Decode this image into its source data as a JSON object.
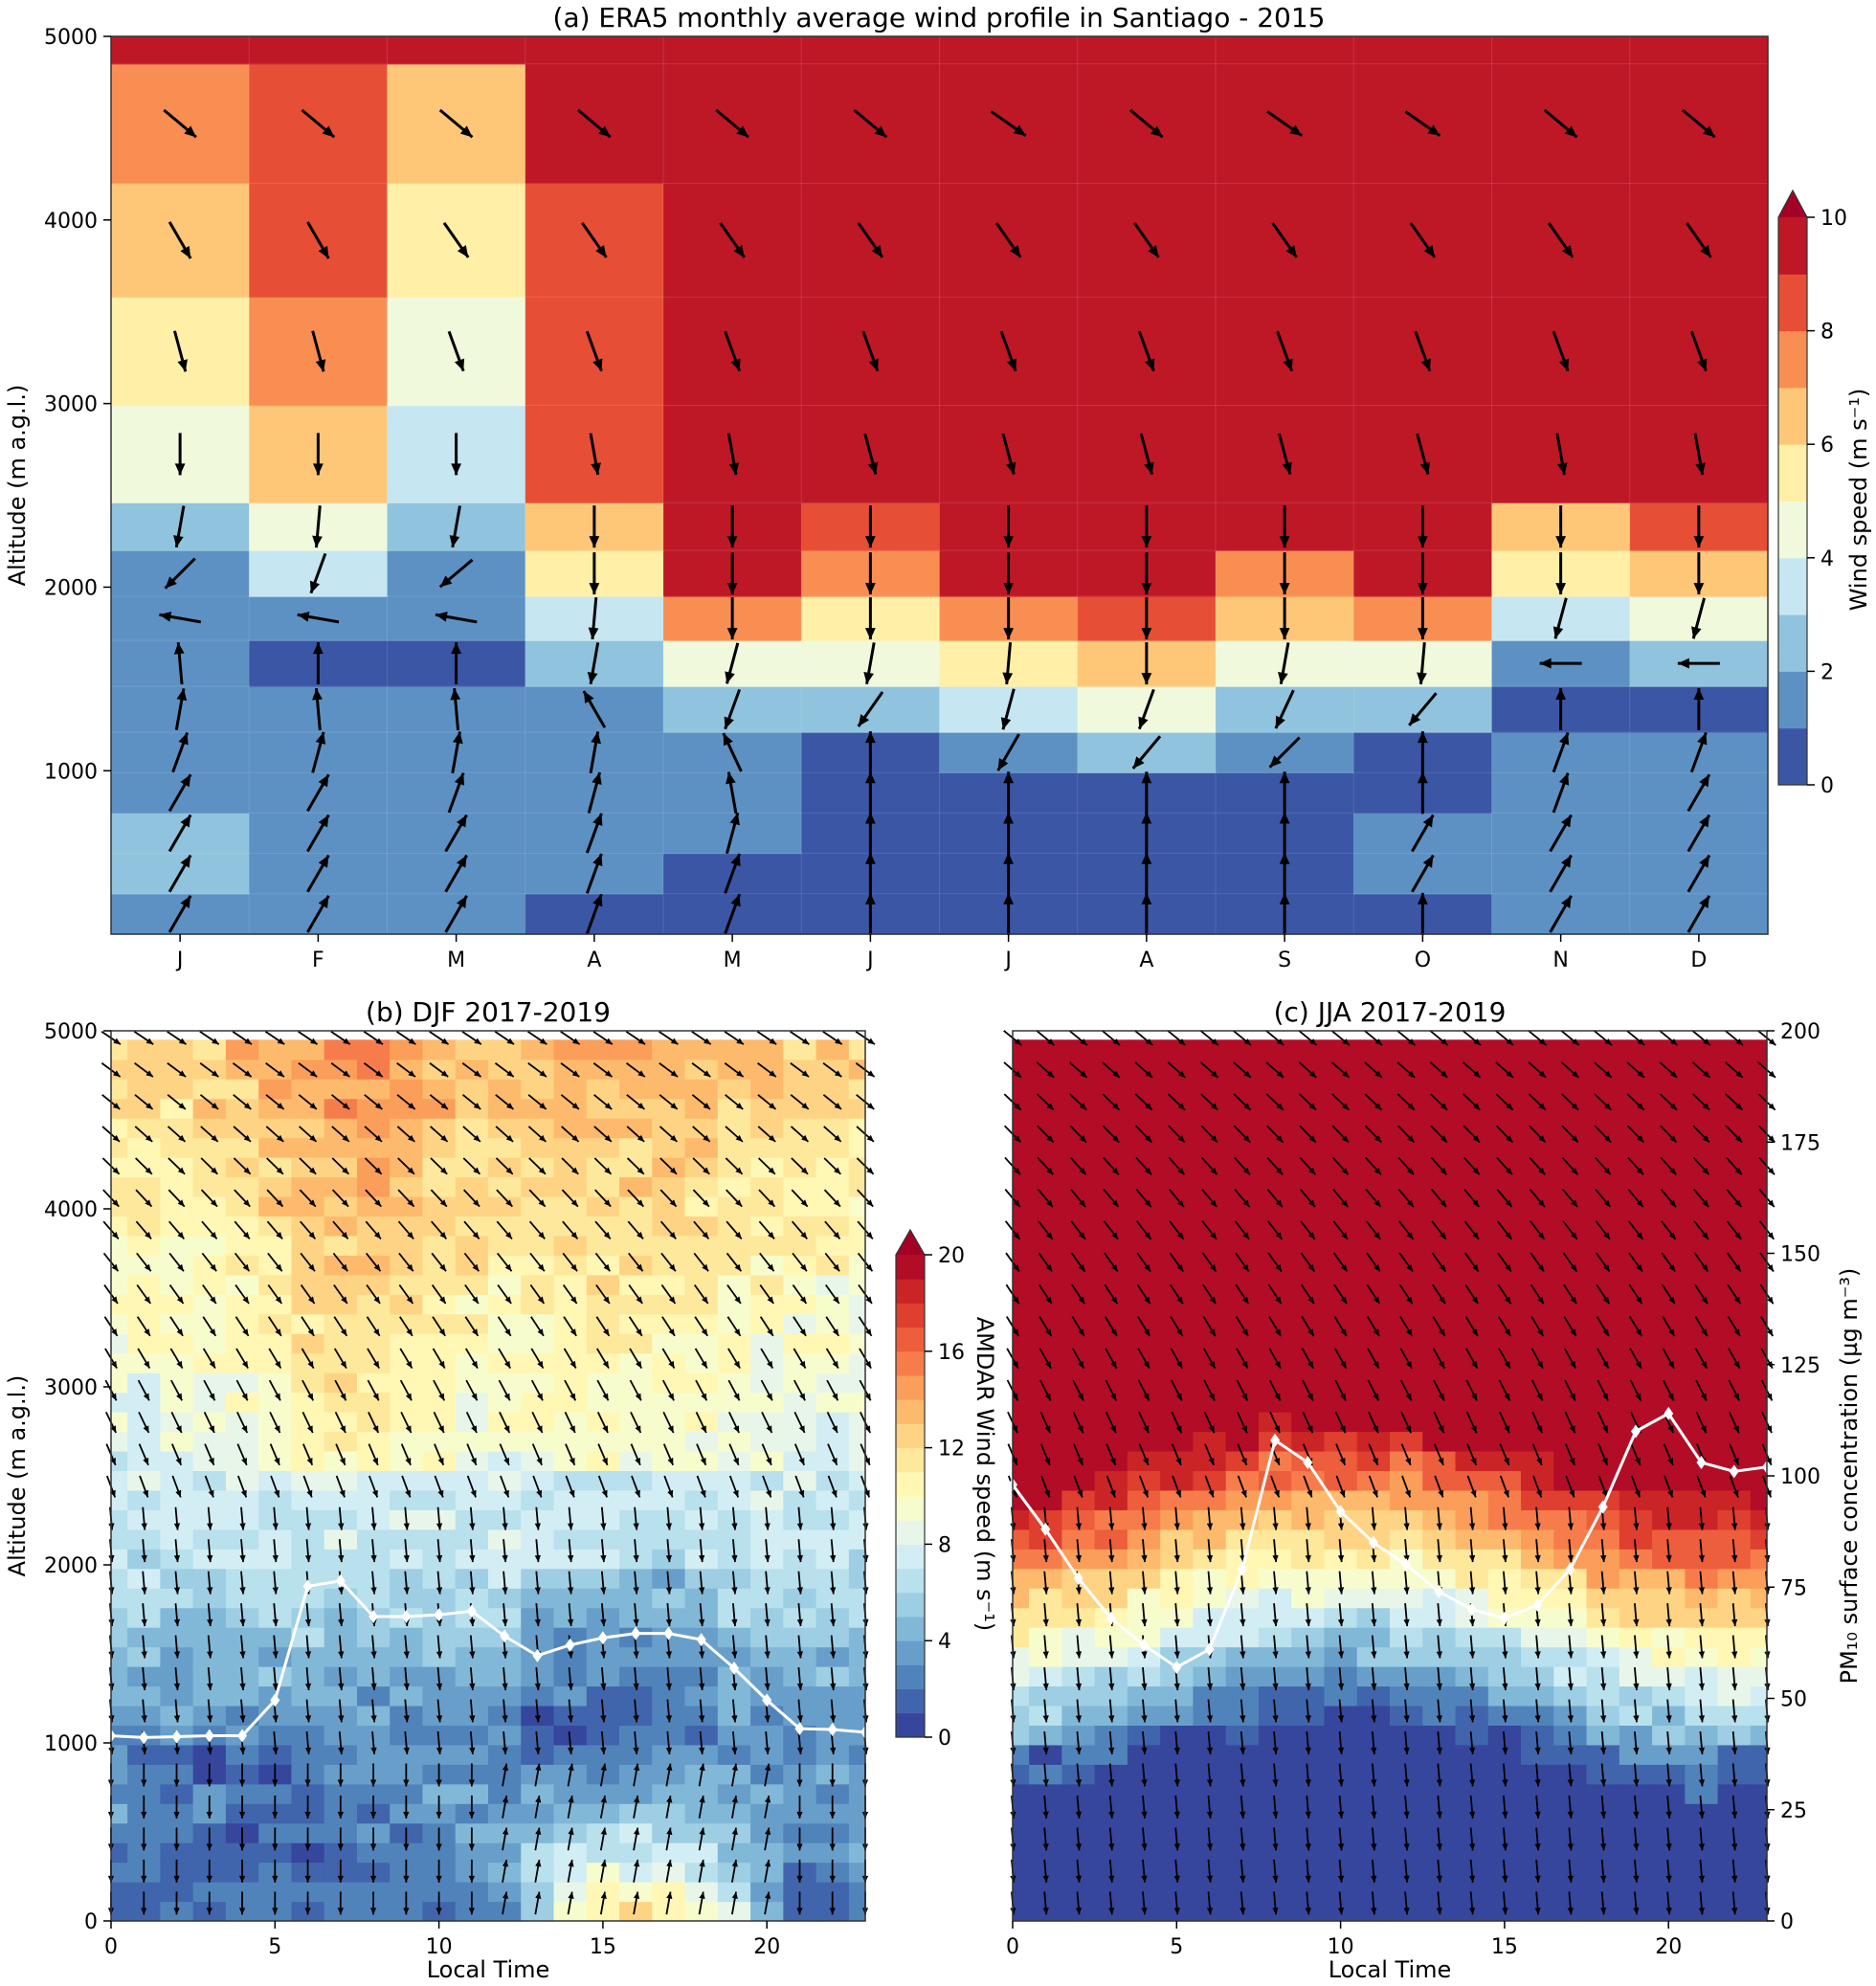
{
  "chart_data": [
    {
      "type": "heatmap",
      "title": "(a) ERA5 monthly average wind profile in Santiago - 2015",
      "xlabel": "",
      "ylabel": "Altitude (m a.g.l.)",
      "categories": [
        "J",
        "F",
        "M",
        "A",
        "M",
        "J",
        "J",
        "A",
        "S",
        "O",
        "N",
        "D"
      ],
      "altitude_levels_m": [
        110,
        330,
        550,
        770,
        990,
        1210,
        1460,
        1710,
        1950,
        2200,
        2460,
        2990,
        3580,
        4200,
        4850,
        5000
      ],
      "ylim": [
        110,
        5000
      ],
      "yticks": [
        1000,
        2000,
        3000,
        4000,
        5000
      ],
      "colorbar": {
        "label": "Wind speed (m s⁻¹)",
        "min": 0,
        "max": 10,
        "step": 1,
        "ticks": [
          0,
          2,
          4,
          6,
          8,
          10
        ],
        "extend": "max",
        "colors": [
          "#313695",
          "#4575b4",
          "#74add1",
          "#abd9e9",
          "#e0f3f8",
          "#fee090",
          "#fdae61",
          "#f46d43",
          "#d73027",
          "#a50026"
        ]
      },
      "wind_speed": [
        [
          1.5,
          1.5,
          1.5,
          0.5,
          0.5,
          0.5,
          0.5,
          0.5,
          0.5,
          0.5,
          1.5,
          1.5
        ],
        [
          2.5,
          1.5,
          1.5,
          1.5,
          0.5,
          0.5,
          0.5,
          0.5,
          0.5,
          1.5,
          1.5,
          1.5
        ],
        [
          2.5,
          1.5,
          1.5,
          1.5,
          1.5,
          0.5,
          0.5,
          0.5,
          0.5,
          1.5,
          1.5,
          1.5
        ],
        [
          1.5,
          1.5,
          1.5,
          1.5,
          1.5,
          0.5,
          0.5,
          0.5,
          0.5,
          0.5,
          1.5,
          1.5
        ],
        [
          1.5,
          1.5,
          1.5,
          1.5,
          1.5,
          0.5,
          1.5,
          2.5,
          1.5,
          0.5,
          1.5,
          1.5
        ],
        [
          1.5,
          1.5,
          1.5,
          1.5,
          2.5,
          2.5,
          3.5,
          4.5,
          2.5,
          2.5,
          0.5,
          0.5
        ],
        [
          1.5,
          0.5,
          0.5,
          2.5,
          4.5,
          4.5,
          5.5,
          6.5,
          4.5,
          4.5,
          1.5,
          2.5
        ],
        [
          1.5,
          1.5,
          1.5,
          3.5,
          7.5,
          5.5,
          7.5,
          8.5,
          6.5,
          7.5,
          3.5,
          4.5
        ],
        [
          1.5,
          3.5,
          1.5,
          5.5,
          9.5,
          7.5,
          9.5,
          9.5,
          7.5,
          9.5,
          5.5,
          6.5
        ],
        [
          2.5,
          4.5,
          2.5,
          6.5,
          9.5,
          8.5,
          9.5,
          9.5,
          9.5,
          9.5,
          6.5,
          8.5
        ],
        [
          4.5,
          6.5,
          3.5,
          8.5,
          9.5,
          9.5,
          9.5,
          9.5,
          9.5,
          9.5,
          9.5,
          9.5
        ],
        [
          5.5,
          7.5,
          4.5,
          8.5,
          9.5,
          9.5,
          9.5,
          9.5,
          9.5,
          9.5,
          9.5,
          9.5
        ],
        [
          6.5,
          8.5,
          5.5,
          8.5,
          9.5,
          9.5,
          9.5,
          9.5,
          9.5,
          9.5,
          9.5,
          9.5
        ],
        [
          7.5,
          8.5,
          6.5,
          9.5,
          9.5,
          9.5,
          9.5,
          9.5,
          9.5,
          9.5,
          9.5,
          9.5
        ],
        [
          9.5,
          9.5,
          9.5,
          9.5,
          9.5,
          9.5,
          9.5,
          9.5,
          9.5,
          9.5,
          9.5,
          9.5
        ]
      ],
      "wind_direction_to_deg": [
        [
          30,
          30,
          30,
          20,
          20,
          0,
          0,
          0,
          0,
          0,
          30,
          30
        ],
        [
          30,
          30,
          30,
          20,
          20,
          0,
          0,
          0,
          0,
          30,
          30,
          30
        ],
        [
          30,
          30,
          30,
          20,
          15,
          0,
          0,
          0,
          0,
          30,
          30,
          30
        ],
        [
          30,
          30,
          20,
          15,
          -10,
          0,
          0,
          0,
          0,
          0,
          20,
          30
        ],
        [
          20,
          15,
          10,
          10,
          -25,
          0,
          -150,
          -140,
          -135,
          0,
          20,
          20
        ],
        [
          10,
          -5,
          -5,
          -30,
          -160,
          -145,
          -165,
          -160,
          -155,
          -140,
          0,
          0
        ],
        [
          -5,
          0,
          0,
          -170,
          -165,
          -170,
          -175,
          -180,
          -170,
          -175,
          -90,
          -90
        ],
        [
          -80,
          -80,
          -80,
          -175,
          -180,
          -180,
          -180,
          -180,
          -180,
          -180,
          -165,
          -165
        ],
        [
          -135,
          -160,
          -130,
          -180,
          -180,
          -180,
          -180,
          -180,
          -180,
          -180,
          -180,
          -180
        ],
        [
          -170,
          -175,
          -170,
          -180,
          -180,
          -180,
          -180,
          -180,
          -180,
          -180,
          -180,
          -180
        ],
        [
          180,
          180,
          180,
          170,
          170,
          165,
          165,
          165,
          165,
          165,
          170,
          170
        ],
        [
          165,
          165,
          160,
          160,
          160,
          160,
          160,
          160,
          160,
          160,
          160,
          160
        ],
        [
          150,
          150,
          145,
          145,
          145,
          145,
          145,
          145,
          145,
          145,
          145,
          145
        ],
        [
          130,
          130,
          130,
          130,
          130,
          130,
          125,
          130,
          125,
          125,
          130,
          130
        ]
      ]
    },
    {
      "type": "heatmap",
      "title": "(b) DJF 2017-2019",
      "xlabel": "Local Time",
      "ylabel": "Altitude (m a.g.l.)",
      "x": [
        0,
        1,
        2,
        3,
        4,
        5,
        6,
        7,
        8,
        9,
        10,
        11,
        12,
        13,
        14,
        15,
        16,
        17,
        18,
        19,
        20,
        21,
        22,
        23
      ],
      "xlim": [
        0,
        23
      ],
      "xticks": [
        0,
        5,
        10,
        15,
        20
      ],
      "ylim": [
        0,
        5000
      ],
      "yticks": [
        0,
        1000,
        2000,
        3000,
        4000,
        5000
      ],
      "colorbar": {
        "label": "AMDAR Wind speed (m s⁻¹)",
        "min": 0,
        "max": 20,
        "step": 1,
        "ticks": [
          0,
          4,
          8,
          12,
          16,
          20
        ],
        "extend": "max"
      },
      "pm10_line": {
        "x": [
          0,
          1,
          2,
          3,
          4,
          5,
          6,
          7,
          8,
          9,
          10,
          11,
          12,
          13,
          14,
          15,
          16,
          17,
          18,
          19,
          20,
          21,
          22,
          23
        ],
        "altitude_m": [
          1040,
          1030,
          1035,
          1040,
          1040,
          1240,
          1880,
          1910,
          1710,
          1710,
          1720,
          1740,
          1600,
          1490,
          1550,
          1590,
          1615,
          1615,
          1580,
          1420,
          1240,
          1080,
          1075,
          1060
        ]
      }
    },
    {
      "type": "heatmap",
      "title": "(c) JJA 2017-2019",
      "xlabel": "Local Time",
      "ylabel": "PM₁₀ surface concentration (µg m⁻³)",
      "x": [
        0,
        1,
        2,
        3,
        4,
        5,
        6,
        7,
        8,
        9,
        10,
        11,
        12,
        13,
        14,
        15,
        16,
        17,
        18,
        19,
        20,
        21,
        22,
        23
      ],
      "xlim": [
        0,
        23
      ],
      "xticks": [
        0,
        5,
        10,
        15,
        20
      ],
      "ylim_right": [
        0,
        200
      ],
      "yticks_right": [
        0,
        25,
        50,
        75,
        100,
        125,
        150,
        175,
        200
      ],
      "pm10_line": {
        "x": [
          0,
          1,
          2,
          3,
          4,
          5,
          6,
          7,
          8,
          9,
          10,
          11,
          12,
          13,
          14,
          15,
          16,
          17,
          18,
          19,
          20,
          21,
          22,
          23
        ],
        "pm10": [
          98,
          88,
          77,
          68,
          62,
          57,
          61,
          79,
          108,
          103,
          92,
          85,
          80,
          74,
          70,
          68,
          71,
          79,
          93,
          110,
          114,
          103,
          101,
          102
        ]
      }
    }
  ],
  "labels": {
    "a_title": "(a) ERA5 monthly average wind profile in Santiago - 2015",
    "b_title": "(b) DJF 2017-2019",
    "c_title": "(c) JJA 2017-2019",
    "altitude": "Altitude (m a.g.l.)",
    "local_time": "Local Time",
    "wind_speed": "Wind speed (m s⁻¹)",
    "amdar_wind_speed": "AMDAR Wind speed (m s⁻¹)",
    "pm10": "PM₁₀ surface concentration (µg m⁻³)"
  }
}
